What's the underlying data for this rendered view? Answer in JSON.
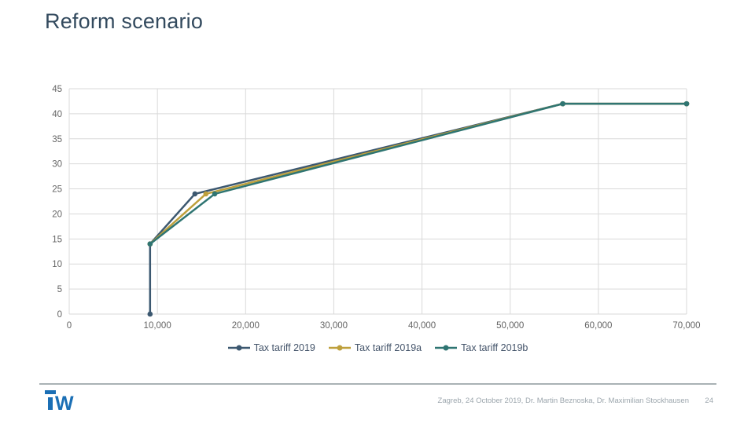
{
  "slide": {
    "title": "Reform scenario",
    "footer": {
      "text": "Zagreb, 24 October 2019, Dr. Martin Beznoska, Dr. Maximilian Stockhausen",
      "page_number": "24",
      "logo_text": "iW"
    }
  },
  "colors": {
    "title": "#334A5E",
    "gridline": "#D9D9D9",
    "tick_label": "#646464",
    "legend_text": "#44546A",
    "footer_text": "#9CA6AD",
    "footer_divider": "#A9B2B5",
    "logo_blue": "#1B6FB5",
    "series_2019": "#3C5870",
    "series_2019a": "#BEA03C",
    "series_2019b": "#2F7572"
  },
  "chart_data": {
    "type": "line",
    "title": "",
    "xlabel": "",
    "ylabel": "",
    "xlim": [
      0,
      70000
    ],
    "ylim": [
      0,
      45
    ],
    "x_ticks": [
      0,
      10000,
      20000,
      30000,
      40000,
      50000,
      60000,
      70000
    ],
    "x_tick_labels": [
      "0",
      "10,000",
      "20,000",
      "30,000",
      "40,000",
      "50,000",
      "60,000",
      "70,000"
    ],
    "y_ticks": [
      0,
      5,
      10,
      15,
      20,
      25,
      30,
      35,
      40,
      45
    ],
    "grid": true,
    "legend_position": "bottom",
    "series": [
      {
        "name": "Tax tariff 2019",
        "color": "#3C5870",
        "points": [
          [
            9168,
            0
          ],
          [
            9168,
            14
          ],
          [
            14254,
            24
          ],
          [
            55961,
            42
          ],
          [
            70000,
            42
          ]
        ]
      },
      {
        "name": "Tax tariff 2019a",
        "color": "#BEA03C",
        "points": [
          [
            9168,
            14
          ],
          [
            15500,
            24
          ],
          [
            55961,
            42
          ],
          [
            70000,
            42
          ]
        ]
      },
      {
        "name": "Tax tariff 2019b",
        "color": "#2F7572",
        "points": [
          [
            9168,
            14
          ],
          [
            16500,
            24
          ],
          [
            55961,
            42
          ],
          [
            70000,
            42
          ]
        ]
      }
    ]
  }
}
